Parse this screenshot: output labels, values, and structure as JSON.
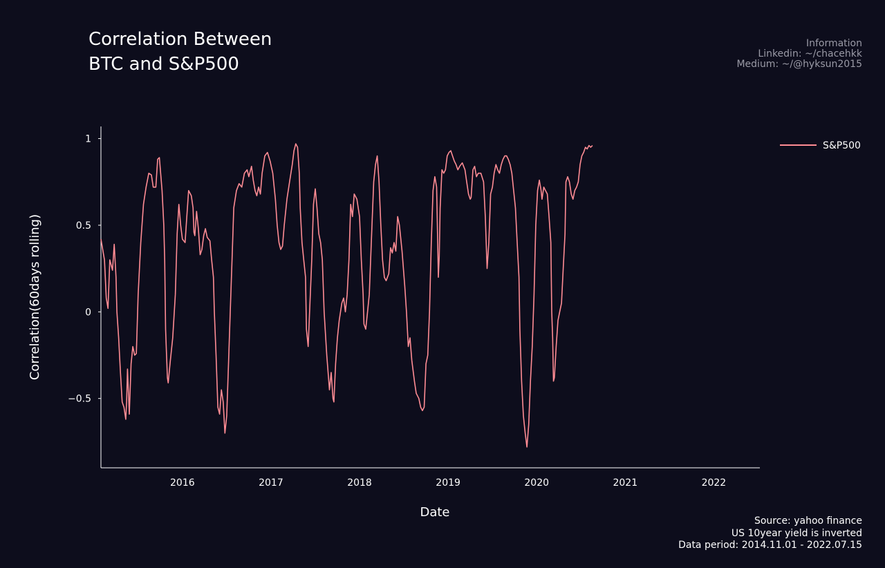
{
  "chart_data": {
    "type": "line",
    "title": [
      "Correlation Between",
      "BTC and S&P500"
    ],
    "xlabel": "Date",
    "ylabel": "Correlation(60days rolling)",
    "ylim": [
      -0.9,
      1.07
    ],
    "xlim": [
      2015.08,
      2022.52
    ],
    "x_ticks": [
      {
        "value": 2016,
        "label": "2016"
      },
      {
        "value": 2017,
        "label": "2017"
      },
      {
        "value": 2018,
        "label": "2018"
      },
      {
        "value": 2019,
        "label": "2019"
      },
      {
        "value": 2020,
        "label": "2020"
      },
      {
        "value": 2021,
        "label": "2021"
      },
      {
        "value": 2022,
        "label": "2022"
      }
    ],
    "y_ticks": [
      {
        "value": 1,
        "label": "1"
      },
      {
        "value": 0.5,
        "label": "0.5"
      },
      {
        "value": 0,
        "label": "0"
      },
      {
        "value": -0.5,
        "label": "−0.5"
      }
    ],
    "legend": "top-right",
    "series": [
      {
        "name": "S&P500",
        "color": "#ff8c94",
        "points": [
          [
            2015.08,
            0.42
          ],
          [
            2015.12,
            0.3
          ],
          [
            2015.14,
            0.08
          ],
          [
            2015.16,
            0.02
          ],
          [
            2015.18,
            0.3
          ],
          [
            2015.21,
            0.24
          ],
          [
            2015.23,
            0.39
          ],
          [
            2015.25,
            0.2
          ],
          [
            2015.26,
            0.0
          ],
          [
            2015.28,
            -0.15
          ],
          [
            2015.3,
            -0.35
          ],
          [
            2015.32,
            -0.52
          ],
          [
            2015.34,
            -0.55
          ],
          [
            2015.36,
            -0.62
          ],
          [
            2015.37,
            -0.52
          ],
          [
            2015.38,
            -0.33
          ],
          [
            2015.4,
            -0.59
          ],
          [
            2015.42,
            -0.3
          ],
          [
            2015.44,
            -0.2
          ],
          [
            2015.46,
            -0.25
          ],
          [
            2015.48,
            -0.24
          ],
          [
            2015.5,
            0.1
          ],
          [
            2015.53,
            0.4
          ],
          [
            2015.56,
            0.62
          ],
          [
            2015.59,
            0.72
          ],
          [
            2015.62,
            0.8
          ],
          [
            2015.65,
            0.79
          ],
          [
            2015.67,
            0.72
          ],
          [
            2015.7,
            0.72
          ],
          [
            2015.72,
            0.88
          ],
          [
            2015.74,
            0.89
          ],
          [
            2015.77,
            0.7
          ],
          [
            2015.79,
            0.5
          ],
          [
            2015.8,
            0.3
          ],
          [
            2015.81,
            -0.1
          ],
          [
            2015.83,
            -0.38
          ],
          [
            2015.84,
            -0.41
          ],
          [
            2015.86,
            -0.3
          ],
          [
            2015.89,
            -0.15
          ],
          [
            2015.92,
            0.1
          ],
          [
            2015.94,
            0.45
          ],
          [
            2015.96,
            0.62
          ],
          [
            2015.98,
            0.5
          ],
          [
            2016.0,
            0.42
          ],
          [
            2016.03,
            0.4
          ],
          [
            2016.05,
            0.55
          ],
          [
            2016.07,
            0.7
          ],
          [
            2016.1,
            0.67
          ],
          [
            2016.12,
            0.6
          ],
          [
            2016.13,
            0.46
          ],
          [
            2016.14,
            0.44
          ],
          [
            2016.16,
            0.58
          ],
          [
            2016.18,
            0.48
          ],
          [
            2016.2,
            0.33
          ],
          [
            2016.22,
            0.36
          ],
          [
            2016.24,
            0.44
          ],
          [
            2016.26,
            0.48
          ],
          [
            2016.28,
            0.43
          ],
          [
            2016.31,
            0.41
          ],
          [
            2016.33,
            0.3
          ],
          [
            2016.35,
            0.2
          ],
          [
            2016.36,
            0.0
          ],
          [
            2016.38,
            -0.25
          ],
          [
            2016.4,
            -0.55
          ],
          [
            2016.42,
            -0.59
          ],
          [
            2016.44,
            -0.45
          ],
          [
            2016.46,
            -0.52
          ],
          [
            2016.48,
            -0.7
          ],
          [
            2016.5,
            -0.6
          ],
          [
            2016.52,
            -0.3
          ],
          [
            2016.54,
            0.0
          ],
          [
            2016.56,
            0.3
          ],
          [
            2016.58,
            0.6
          ],
          [
            2016.61,
            0.7
          ],
          [
            2016.64,
            0.74
          ],
          [
            2016.67,
            0.72
          ],
          [
            2016.7,
            0.8
          ],
          [
            2016.73,
            0.82
          ],
          [
            2016.75,
            0.78
          ],
          [
            2016.78,
            0.84
          ],
          [
            2016.8,
            0.76
          ],
          [
            2016.82,
            0.7
          ],
          [
            2016.84,
            0.67
          ],
          [
            2016.86,
            0.72
          ],
          [
            2016.88,
            0.68
          ],
          [
            2016.9,
            0.8
          ],
          [
            2016.93,
            0.9
          ],
          [
            2016.96,
            0.92
          ],
          [
            2016.99,
            0.87
          ],
          [
            2017.02,
            0.8
          ],
          [
            2017.05,
            0.65
          ],
          [
            2017.07,
            0.5
          ],
          [
            2017.09,
            0.4
          ],
          [
            2017.11,
            0.36
          ],
          [
            2017.13,
            0.38
          ],
          [
            2017.15,
            0.5
          ],
          [
            2017.18,
            0.65
          ],
          [
            2017.21,
            0.75
          ],
          [
            2017.24,
            0.85
          ],
          [
            2017.26,
            0.93
          ],
          [
            2017.28,
            0.97
          ],
          [
            2017.3,
            0.95
          ],
          [
            2017.32,
            0.8
          ],
          [
            2017.33,
            0.6
          ],
          [
            2017.35,
            0.4
          ],
          [
            2017.37,
            0.3
          ],
          [
            2017.39,
            0.2
          ],
          [
            2017.4,
            -0.1
          ],
          [
            2017.42,
            -0.2
          ],
          [
            2017.44,
            0.05
          ],
          [
            2017.46,
            0.3
          ],
          [
            2017.48,
            0.62
          ],
          [
            2017.5,
            0.71
          ],
          [
            2017.52,
            0.6
          ],
          [
            2017.54,
            0.45
          ],
          [
            2017.56,
            0.4
          ],
          [
            2017.58,
            0.3
          ],
          [
            2017.6,
            0.0
          ],
          [
            2017.63,
            -0.25
          ],
          [
            2017.66,
            -0.45
          ],
          [
            2017.68,
            -0.35
          ],
          [
            2017.7,
            -0.5
          ],
          [
            2017.71,
            -0.52
          ],
          [
            2017.73,
            -0.3
          ],
          [
            2017.75,
            -0.15
          ],
          [
            2017.77,
            -0.05
          ],
          [
            2017.8,
            0.05
          ],
          [
            2017.82,
            0.08
          ],
          [
            2017.84,
            0.0
          ],
          [
            2017.86,
            0.1
          ],
          [
            2017.88,
            0.3
          ],
          [
            2017.9,
            0.62
          ],
          [
            2017.92,
            0.55
          ],
          [
            2017.94,
            0.68
          ],
          [
            2017.97,
            0.65
          ],
          [
            2018.0,
            0.55
          ],
          [
            2018.02,
            0.3
          ],
          [
            2018.04,
            0.1
          ],
          [
            2018.05,
            -0.07
          ],
          [
            2018.07,
            -0.1
          ],
          [
            2018.09,
            0.0
          ],
          [
            2018.11,
            0.1
          ],
          [
            2018.14,
            0.5
          ],
          [
            2018.16,
            0.75
          ],
          [
            2018.18,
            0.85
          ],
          [
            2018.2,
            0.9
          ],
          [
            2018.22,
            0.75
          ],
          [
            2018.24,
            0.5
          ],
          [
            2018.26,
            0.3
          ],
          [
            2018.28,
            0.2
          ],
          [
            2018.3,
            0.18
          ],
          [
            2018.33,
            0.22
          ],
          [
            2018.35,
            0.37
          ],
          [
            2018.37,
            0.34
          ],
          [
            2018.39,
            0.4
          ],
          [
            2018.41,
            0.35
          ],
          [
            2018.43,
            0.55
          ],
          [
            2018.45,
            0.5
          ],
          [
            2018.48,
            0.35
          ],
          [
            2018.51,
            0.15
          ],
          [
            2018.53,
            0.0
          ],
          [
            2018.55,
            -0.2
          ],
          [
            2018.57,
            -0.15
          ],
          [
            2018.59,
            -0.28
          ],
          [
            2018.62,
            -0.4
          ],
          [
            2018.64,
            -0.47
          ],
          [
            2018.67,
            -0.5
          ],
          [
            2018.69,
            -0.55
          ],
          [
            2018.71,
            -0.57
          ],
          [
            2018.73,
            -0.55
          ],
          [
            2018.75,
            -0.3
          ],
          [
            2018.77,
            -0.25
          ],
          [
            2018.79,
            0.0
          ],
          [
            2018.81,
            0.4
          ],
          [
            2018.83,
            0.7
          ],
          [
            2018.85,
            0.78
          ],
          [
            2018.87,
            0.72
          ],
          [
            2018.89,
            0.2
          ],
          [
            2018.9,
            0.32
          ],
          [
            2018.91,
            0.6
          ],
          [
            2018.93,
            0.82
          ],
          [
            2018.95,
            0.8
          ],
          [
            2018.97,
            0.82
          ],
          [
            2018.99,
            0.9
          ],
          [
            2019.01,
            0.92
          ],
          [
            2019.03,
            0.93
          ],
          [
            2019.05,
            0.9
          ],
          [
            2019.07,
            0.87
          ],
          [
            2019.09,
            0.85
          ],
          [
            2019.11,
            0.82
          ],
          [
            2019.13,
            0.84
          ],
          [
            2019.16,
            0.86
          ],
          [
            2019.19,
            0.82
          ],
          [
            2019.21,
            0.75
          ],
          [
            2019.23,
            0.68
          ],
          [
            2019.25,
            0.65
          ],
          [
            2019.26,
            0.66
          ],
          [
            2019.28,
            0.82
          ],
          [
            2019.3,
            0.84
          ],
          [
            2019.32,
            0.78
          ],
          [
            2019.34,
            0.8
          ],
          [
            2019.37,
            0.8
          ],
          [
            2019.4,
            0.75
          ],
          [
            2019.42,
            0.55
          ],
          [
            2019.44,
            0.25
          ],
          [
            2019.46,
            0.4
          ],
          [
            2019.48,
            0.68
          ],
          [
            2019.5,
            0.72
          ],
          [
            2019.52,
            0.8
          ],
          [
            2019.54,
            0.85
          ],
          [
            2019.56,
            0.82
          ],
          [
            2019.58,
            0.8
          ],
          [
            2019.6,
            0.85
          ],
          [
            2019.62,
            0.88
          ],
          [
            2019.64,
            0.9
          ],
          [
            2019.66,
            0.9
          ],
          [
            2019.68,
            0.88
          ],
          [
            2019.7,
            0.85
          ],
          [
            2019.72,
            0.8
          ],
          [
            2019.74,
            0.7
          ],
          [
            2019.76,
            0.6
          ],
          [
            2019.78,
            0.4
          ],
          [
            2019.8,
            0.2
          ],
          [
            2019.81,
            -0.1
          ],
          [
            2019.83,
            -0.4
          ],
          [
            2019.85,
            -0.6
          ],
          [
            2019.87,
            -0.7
          ],
          [
            2019.89,
            -0.78
          ],
          [
            2019.91,
            -0.65
          ],
          [
            2019.93,
            -0.4
          ],
          [
            2019.95,
            -0.2
          ],
          [
            2019.97,
            0.1
          ],
          [
            2019.99,
            0.5
          ],
          [
            2020.01,
            0.7
          ],
          [
            2020.03,
            0.76
          ],
          [
            2020.05,
            0.7
          ],
          [
            2020.06,
            0.65
          ],
          [
            2020.08,
            0.72
          ],
          [
            2020.1,
            0.7
          ],
          [
            2020.12,
            0.68
          ],
          [
            2020.14,
            0.55
          ],
          [
            2020.16,
            0.4
          ],
          [
            2020.17,
            0.0
          ],
          [
            2020.18,
            -0.15
          ],
          [
            2020.19,
            -0.4
          ],
          [
            2020.2,
            -0.38
          ],
          [
            2020.22,
            -0.2
          ],
          [
            2020.24,
            -0.05
          ],
          [
            2020.26,
            0.0
          ],
          [
            2020.28,
            0.05
          ],
          [
            2020.3,
            0.25
          ],
          [
            2020.32,
            0.45
          ],
          [
            2020.33,
            0.75
          ],
          [
            2020.35,
            0.78
          ],
          [
            2020.37,
            0.75
          ],
          [
            2020.39,
            0.68
          ],
          [
            2020.41,
            0.65
          ],
          [
            2020.43,
            0.7
          ],
          [
            2020.45,
            0.72
          ],
          [
            2020.47,
            0.75
          ],
          [
            2020.49,
            0.85
          ],
          [
            2020.51,
            0.9
          ],
          [
            2020.53,
            0.92
          ],
          [
            2020.55,
            0.95
          ],
          [
            2020.57,
            0.94
          ],
          [
            2020.59,
            0.96
          ],
          [
            2020.61,
            0.95
          ],
          [
            2020.63,
            0.96
          ]
        ]
      }
    ]
  }
}
